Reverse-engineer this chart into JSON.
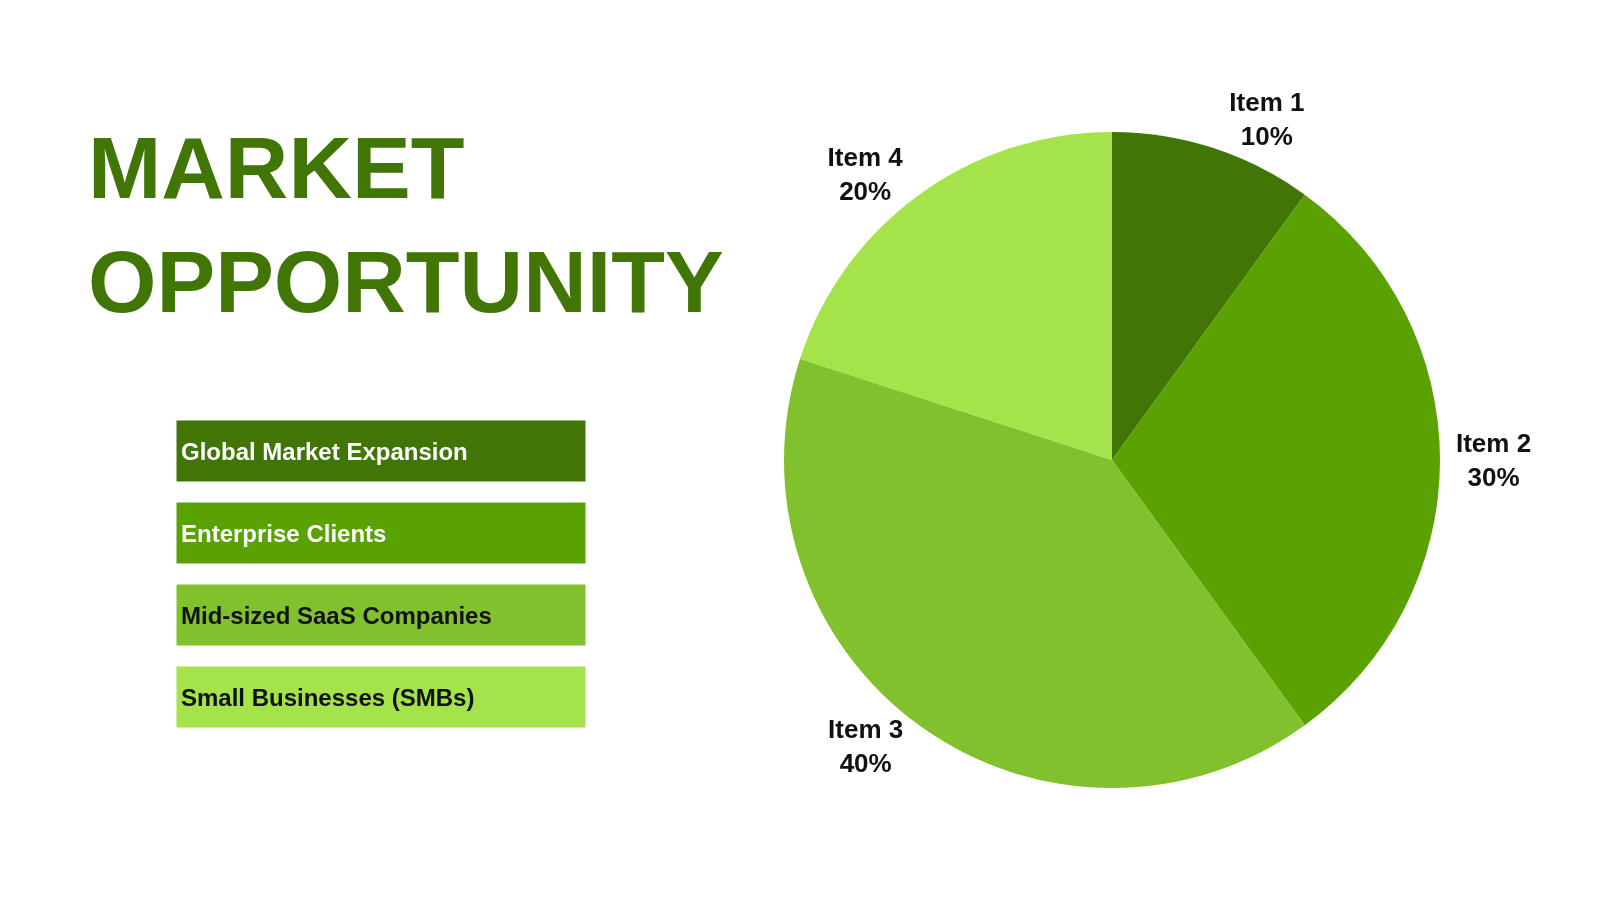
{
  "chart_data": {
    "type": "pie",
    "title": "MARKET\nOPPORTUNITY",
    "categories": [
      "Item 1",
      "Item 2",
      "Item 3",
      "Item 4"
    ],
    "values": [
      10,
      30,
      40,
      20
    ],
    "value_labels": [
      "10%",
      "30%",
      "40%",
      "20%"
    ],
    "colors": [
      "#417505",
      "#5aa102",
      "#82c12e",
      "#a5e34b"
    ],
    "annotations": [
      "Global Market Expansion",
      "Enterprise Clients",
      "Mid-sized SaaS Companies",
      "Small Businesses (SMBs)"
    ],
    "legend": false
  }
}
